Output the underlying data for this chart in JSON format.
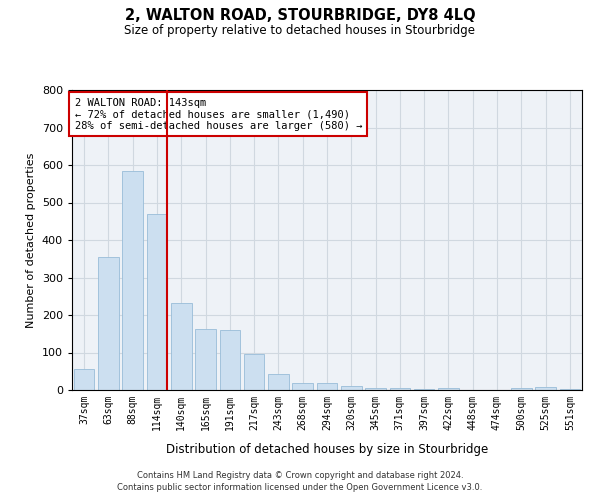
{
  "title": "2, WALTON ROAD, STOURBRIDGE, DY8 4LQ",
  "subtitle": "Size of property relative to detached houses in Stourbridge",
  "xlabel": "Distribution of detached houses by size in Stourbridge",
  "ylabel": "Number of detached properties",
  "categories": [
    "37sqm",
    "63sqm",
    "88sqm",
    "114sqm",
    "140sqm",
    "165sqm",
    "191sqm",
    "217sqm",
    "243sqm",
    "268sqm",
    "294sqm",
    "320sqm",
    "345sqm",
    "371sqm",
    "397sqm",
    "422sqm",
    "448sqm",
    "474sqm",
    "500sqm",
    "525sqm",
    "551sqm"
  ],
  "values": [
    57,
    356,
    585,
    470,
    233,
    162,
    161,
    95,
    44,
    18,
    18,
    10,
    5,
    5,
    3,
    5,
    0,
    0,
    5,
    8,
    3
  ],
  "bar_color": "#ccdff0",
  "bar_edgecolor": "#99bcd8",
  "highlight_line_color": "#cc0000",
  "annotation_line1": "2 WALTON ROAD: 143sqm",
  "annotation_line2": "← 72% of detached houses are smaller (1,490)",
  "annotation_line3": "28% of semi-detached houses are larger (580) →",
  "annotation_box_edgecolor": "#cc0000",
  "annotation_box_facecolor": "#ffffff",
  "ylim": [
    0,
    800
  ],
  "yticks": [
    0,
    100,
    200,
    300,
    400,
    500,
    600,
    700,
    800
  ],
  "grid_color": "#d0d8e0",
  "background_color": "#eef2f7",
  "footer_line1": "Contains HM Land Registry data © Crown copyright and database right 2024.",
  "footer_line2": "Contains public sector information licensed under the Open Government Licence v3.0."
}
